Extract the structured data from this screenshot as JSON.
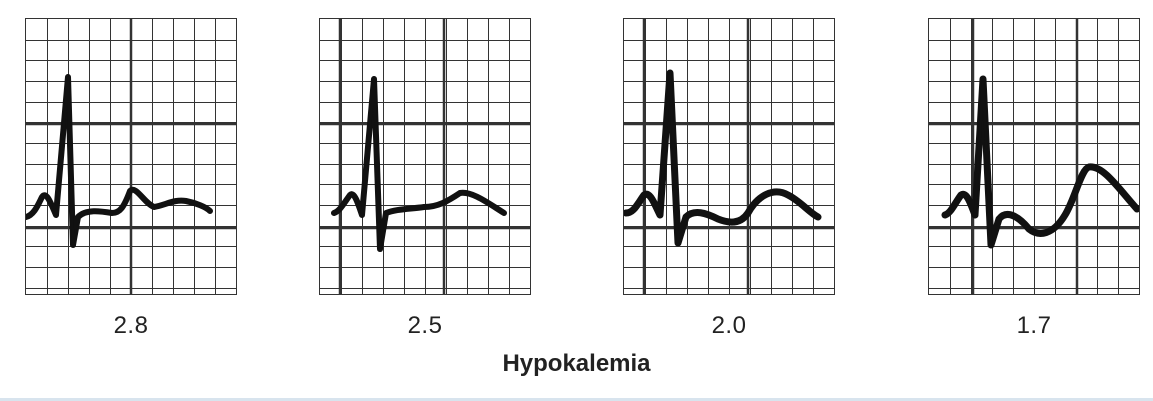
{
  "caption": "Hypokalemia",
  "panels": [
    {
      "value_label": "2.8"
    },
    {
      "value_label": "2.5"
    },
    {
      "value_label": "2.0"
    },
    {
      "value_label": "1.7"
    }
  ],
  "colors": {
    "grid": "#333333",
    "trace": "#111111",
    "background": "#ffffff"
  }
}
